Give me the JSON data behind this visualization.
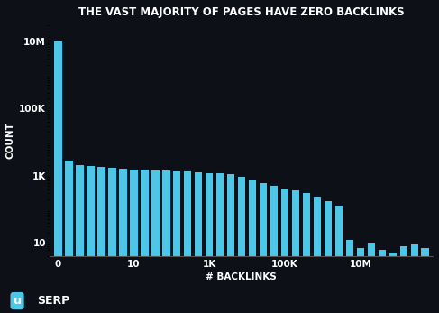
{
  "title": "THE VAST MAJORITY OF PAGES HAVE ZERO BACKLINKS",
  "xlabel": "# BACKLINKS",
  "ylabel": "COUNT",
  "background_color": "#0d1117",
  "bar_color": "#4ec6e8",
  "title_color": "#ffffff",
  "label_color": "#ffffff",
  "tick_color": "#ffffff",
  "bar_values": [
    10000000,
    2800,
    2000,
    1900,
    1800,
    1700,
    1600,
    1550,
    1500,
    1450,
    1400,
    1350,
    1300,
    1250,
    1200,
    1150,
    1100,
    900,
    700,
    600,
    500,
    420,
    370,
    300,
    230,
    170,
    130,
    12,
    7,
    10,
    6,
    5,
    8,
    9,
    7
  ],
  "xtick_labels": [
    "0",
    "10",
    "1K",
    "100K",
    "10M"
  ],
  "ytick_positions": [
    10,
    1000,
    100000,
    10000000
  ],
  "ytick_labels": [
    "10",
    "1K",
    "100K",
    "10M"
  ],
  "logo_text": "uSERP",
  "figsize": [
    4.87,
    3.47
  ],
  "dpi": 100
}
